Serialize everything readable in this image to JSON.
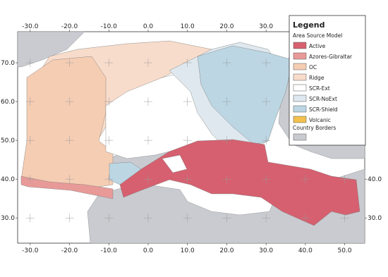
{
  "map": {
    "lon_range": [
      -33.2,
      55.1
    ],
    "lat_range": [
      23.5,
      78
    ],
    "lon_ticks": [
      {
        "value": -30,
        "label": "-30.0"
      },
      {
        "value": -20,
        "label": "-20.0"
      },
      {
        "value": -10,
        "label": "-10.0"
      },
      {
        "value": 0,
        "label": "0.0"
      },
      {
        "value": 10,
        "label": "10.0"
      },
      {
        "value": 20,
        "label": "20.0"
      },
      {
        "value": 30,
        "label": "30.0"
      },
      {
        "value": 40,
        "label": "40.0"
      },
      {
        "value": 50,
        "label": "50.0"
      }
    ],
    "lat_ticks": [
      {
        "value": 30,
        "label": "30.0"
      },
      {
        "value": 40,
        "label": "40.0"
      },
      {
        "value": 50,
        "label": "50.0"
      },
      {
        "value": 60,
        "label": "60.0"
      },
      {
        "value": 70,
        "label": "70.0"
      }
    ],
    "legend": {
      "title": "Legend",
      "group_title": "Area Source Model",
      "entries": [
        {
          "name": "Active",
          "color": "#d6606f"
        },
        {
          "name": "Azores-Gibraltar",
          "color": "#e89a98"
        },
        {
          "name": "OC",
          "color": "#f5cdb3"
        },
        {
          "name": "Ridge",
          "color": "#f8dccb"
        },
        {
          "name": "SCR-Ext",
          "color": "#ffffff"
        },
        {
          "name": "SCR-NoExt",
          "color": "#dfe8ee"
        },
        {
          "name": "SCR-Shield",
          "color": "#bcd6e3"
        },
        {
          "name": "Volcanic",
          "color": "#f2c14e"
        }
      ],
      "borders_title": "Country Borders",
      "borders_color": "#c9cbd0"
    }
  }
}
